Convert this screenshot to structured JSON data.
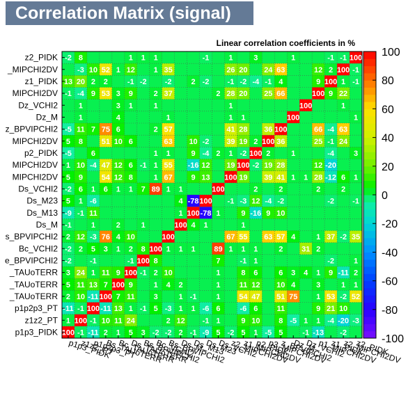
{
  "chart_data": {
    "type": "heatmap",
    "title": "Correlation Matrix (signal)",
    "subtitle": "Linear correlation coefficients in %",
    "variables": [
      "p1p3_PIDK",
      "z1z2_PT",
      "p1p2p3_PT",
      "Bs_TAUoTERR",
      "Bc_TAUoTERR",
      "Ds_TAUoTERR",
      "Bs_BPVIPCHI2",
      "Bc_VCHI2",
      "Bs_BPVIPCHI2",
      "Ds_M",
      "Ds_M13",
      "Ds_M23",
      "Ds_VCHI2",
      "z2_MIPCHI2DV",
      "z1_MIPCHI2DV",
      "p2_PIDK",
      "p3_MIPCHI2DV",
      "z_BPVIPCHI2",
      "Dz_M",
      "Dz_VCHI2",
      "p1_MIPCHI2DV",
      "z1_PIDK",
      "z2_MIPCHI2DV",
      "z2_PIDK"
    ],
    "y_labels": [
      "p1p3_PIDK",
      "z1z2_PT",
      "p1p2p3_PT",
      "_TAUoTERR",
      "_TAUoTERR",
      "_TAUoTERR",
      "e_BPVIPCHI2",
      "Bc_VCHI2",
      "s_BPVIPCHI2",
      "Ds_M",
      "Ds_M13",
      "Ds_M23",
      "Ds_VCHI2",
      "MIPCHI2DV",
      "MIPCHI2DV",
      "p2_PIDK",
      "MIPCHI2DV",
      "z_BPVIPCHI2",
      "Dz_M",
      "Dz_VCHI2",
      "MIPCHI2DV",
      "z1_PIDK",
      "_MIPCHI2DV",
      "z2_PIDK"
    ],
    "x_labels": [
      "p1p3_PIDK",
      "z1z2_PT",
      "p1p2p3_PT",
      "Bs_TAUoTERR",
      "Bc_TAUoTERR",
      "Ds_TAUoTERR",
      "Bs_BPVIPCHI2",
      "Bc_VCHI2",
      "Bs_BPVIPCHI2",
      "Ds_M",
      "Ds_M13",
      "Ds_M23",
      "Ds_VCHI2",
      "z2_MIPCHI2DV",
      "z1_MIPCHI2DV",
      "p2_PIDK",
      "p3_MIPCHI2DV",
      "z_BPVIPCHI2",
      "Dz_M",
      "Dz_VCHI2",
      "p1_MIPCHI2DV",
      "z1_PIDK",
      "z2_MIPCHI2DV",
      "z2_PIDK"
    ],
    "matrix": [
      [
        100,
        -1,
        -11,
        2,
        1,
        5,
        3,
        -2,
        -2,
        2,
        -1,
        -9,
        5,
        -2,
        5,
        1,
        -5,
        5,
        null,
        -1,
        -13,
        null,
        -2,
        null
      ],
      [
        1,
        100,
        -1,
        10,
        11,
        24,
        null,
        null,
        2,
        12,
        null,
        -1,
        1,
        null,
        9,
        10,
        null,
        8,
        -5,
        1,
        1,
        -4,
        -20,
        -3
      ],
      [
        -11,
        -1,
        100,
        -11,
        13,
        1,
        -1,
        5,
        -3,
        1,
        1,
        -6,
        6,
        null,
        -6,
        6,
        null,
        11,
        null,
        null,
        9,
        21,
        10,
        null
      ],
      [
        2,
        10,
        -11,
        100,
        7,
        11,
        null,
        3,
        null,
        1,
        -1,
        null,
        1,
        null,
        54,
        47,
        null,
        51,
        75,
        null,
        1,
        53,
        -2,
        52
      ],
      [
        5,
        11,
        13,
        7,
        100,
        9,
        null,
        1,
        4,
        2,
        null,
        null,
        1,
        null,
        11,
        12,
        null,
        10,
        4,
        null,
        3,
        null,
        1,
        1
      ],
      [
        3,
        24,
        1,
        11,
        9,
        100,
        -1,
        2,
        10,
        null,
        null,
        null,
        1,
        null,
        8,
        6,
        null,
        6,
        3,
        4,
        1,
        9,
        -11,
        2
      ],
      [
        -2,
        null,
        -1,
        null,
        null,
        -1,
        100,
        8,
        null,
        null,
        null,
        null,
        7,
        null,
        -1,
        1,
        null,
        null,
        null,
        null,
        null,
        -2,
        null,
        1
      ],
      [
        -2,
        2,
        5,
        3,
        1,
        2,
        8,
        100,
        1,
        1,
        1,
        null,
        89,
        1,
        1,
        1,
        null,
        2,
        null,
        31,
        2,
        null,
        null,
        null
      ],
      [
        2,
        12,
        -3,
        76,
        4,
        10,
        null,
        null,
        100,
        null,
        null,
        null,
        null,
        67,
        55,
        null,
        63,
        57,
        4,
        null,
        1,
        37,
        -2,
        35
      ],
      [
        -1,
        null,
        1,
        null,
        2,
        null,
        1,
        null,
        null,
        100,
        4,
        1,
        null,
        null,
        1,
        null,
        null,
        null,
        null,
        null,
        null,
        null,
        null,
        null
      ],
      [
        -9,
        -1,
        11,
        null,
        null,
        null,
        null,
        null,
        null,
        1,
        100,
        -78,
        1,
        null,
        9,
        -16,
        9,
        10,
        null,
        null,
        null,
        null,
        null,
        null
      ],
      [
        5,
        1,
        -6,
        null,
        null,
        null,
        null,
        null,
        null,
        4,
        -78,
        100,
        null,
        -1,
        -3,
        12,
        -4,
        -2,
        null,
        null,
        null,
        -2,
        null,
        -1
      ],
      [
        -2,
        6,
        1,
        6,
        1,
        1,
        7,
        89,
        1,
        1,
        null,
        null,
        100,
        null,
        null,
        2,
        null,
        2,
        null,
        null,
        2,
        null,
        2,
        null
      ],
      [
        5,
        9,
        null,
        54,
        12,
        8,
        null,
        1,
        67,
        null,
        9,
        13,
        null,
        100,
        19,
        null,
        39,
        41,
        1,
        1,
        28,
        -12,
        6,
        1
      ],
      [
        1,
        10,
        -4,
        47,
        12,
        6,
        -1,
        1,
        55,
        null,
        -16,
        12,
        null,
        19,
        100,
        -2,
        19,
        28,
        null,
        null,
        12,
        -20,
        null,
        null
      ],
      [
        -5,
        null,
        6,
        null,
        null,
        null,
        null,
        1,
        1,
        null,
        9,
        -4,
        2,
        1,
        -2,
        100,
        2,
        null,
        1,
        null,
        null,
        -4,
        null,
        3
      ],
      [
        5,
        8,
        null,
        51,
        10,
        6,
        null,
        null,
        63,
        null,
        10,
        -2,
        null,
        39,
        19,
        2,
        100,
        36,
        null,
        null,
        25,
        -1,
        24,
        null
      ],
      [
        -5,
        11,
        7,
        75,
        6,
        null,
        null,
        2,
        57,
        null,
        null,
        null,
        null,
        41,
        28,
        null,
        36,
        100,
        null,
        null,
        66,
        -4,
        63,
        null
      ],
      [
        null,
        1,
        null,
        null,
        4,
        null,
        null,
        null,
        1,
        null,
        null,
        null,
        null,
        1,
        1,
        null,
        null,
        null,
        100,
        null,
        null,
        null,
        null,
        1
      ],
      [
        null,
        1,
        null,
        null,
        3,
        1,
        null,
        1,
        null,
        null,
        null,
        null,
        null,
        1,
        null,
        null,
        null,
        null,
        null,
        100,
        null,
        null,
        1,
        null
      ],
      [
        -1,
        -4,
        9,
        53,
        3,
        9,
        null,
        2,
        37,
        null,
        null,
        null,
        2,
        28,
        20,
        null,
        25,
        66,
        null,
        null,
        100,
        9,
        22,
        null
      ],
      [
        13,
        20,
        2,
        2,
        null,
        -1,
        -2,
        null,
        -2,
        null,
        2,
        -2,
        null,
        -1,
        -2,
        -4,
        -1,
        4,
        null,
        null,
        9,
        100,
        1,
        -1
      ],
      [
        null,
        -3,
        10,
        52,
        1,
        12,
        null,
        1,
        35,
        null,
        null,
        null,
        null,
        26,
        20,
        null,
        24,
        63,
        null,
        null,
        12,
        2,
        100,
        -1
      ],
      [
        -2,
        8,
        null,
        null,
        null,
        1,
        1,
        1,
        null,
        null,
        null,
        -1,
        null,
        1,
        null,
        3,
        null,
        null,
        1,
        null,
        null,
        -1,
        -1,
        100
      ]
    ],
    "zlim": [
      -100,
      100
    ],
    "z_ticks": [
      -100,
      -80,
      -60,
      -40,
      -20,
      0,
      20,
      40,
      60,
      80,
      100
    ],
    "grid": true
  }
}
